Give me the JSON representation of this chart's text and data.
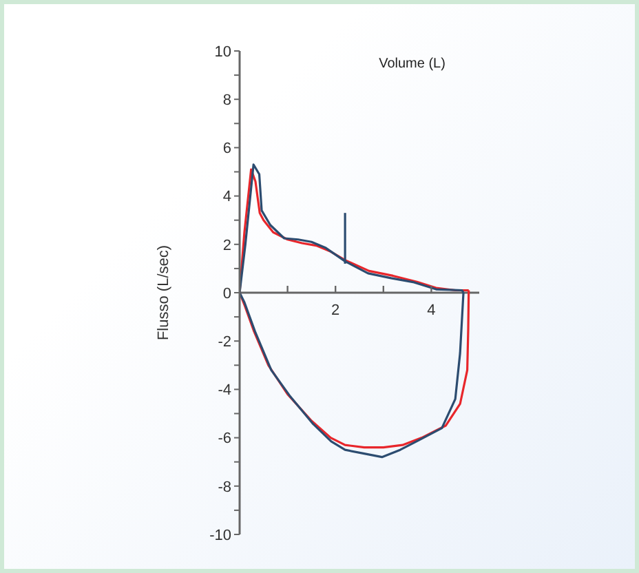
{
  "chart_data": {
    "type": "line",
    "xlabel": "Volume (L)",
    "ylabel": "Flusso (L/sec)",
    "xlim": [
      0,
      5
    ],
    "ylim": [
      -10,
      10
    ],
    "xticks": [
      {
        "value": 1,
        "label": null
      },
      2,
      {
        "value": 3,
        "label": null
      },
      4
    ],
    "yticks": [
      -10,
      {
        "value": -9,
        "label": null
      },
      -8,
      {
        "value": -7,
        "label": null
      },
      -6,
      {
        "value": -5,
        "label": null
      },
      -4,
      {
        "value": -3,
        "label": null
      },
      -2,
      {
        "value": -1,
        "label": null
      },
      0,
      {
        "value": 1,
        "label": null
      },
      2,
      {
        "value": 3,
        "label": null
      },
      4,
      {
        "value": 5,
        "label": null
      },
      6,
      {
        "value": 7,
        "label": null
      },
      8,
      {
        "value": 9,
        "label": null
      },
      10
    ],
    "grid": false,
    "marker": "none",
    "line_style": "solid",
    "series": [
      {
        "color": "#e8262b",
        "x": [
          0,
          0.1,
          0.24,
          0.33,
          0.42,
          0.5,
          0.7,
          1.0,
          1.3,
          1.6,
          1.9,
          2.2,
          2.7,
          3.2,
          3.7,
          4.1,
          4.5,
          4.78
        ],
        "values": [
          0,
          2.5,
          5.1,
          4.6,
          3.3,
          3.0,
          2.5,
          2.2,
          2.05,
          1.95,
          1.7,
          1.35,
          0.9,
          0.7,
          0.45,
          0.2,
          0.1,
          0.1
        ]
      },
      {
        "color": "#e8262b",
        "x": [
          0,
          0.1,
          0.3,
          0.6,
          1.0,
          1.5,
          1.9,
          2.2,
          2.6,
          3.0,
          3.4,
          3.8,
          4.3,
          4.6,
          4.75,
          4.77,
          4.78
        ],
        "values": [
          0,
          -0.5,
          -1.6,
          -3.0,
          -4.2,
          -5.3,
          -6.0,
          -6.3,
          -6.4,
          -6.4,
          -6.3,
          -6.0,
          -5.5,
          -4.6,
          -3.2,
          -1.5,
          0.1
        ]
      },
      {
        "color": "#2c4c70",
        "x": [
          0,
          0.12,
          0.29,
          0.41,
          0.46,
          0.64,
          0.93,
          1.22,
          1.5,
          1.8,
          2.2,
          2.68,
          3.16,
          3.64,
          4.1,
          4.64,
          4.67
        ],
        "values": [
          0,
          2.0,
          5.3,
          4.9,
          3.4,
          2.8,
          2.25,
          2.2,
          2.1,
          1.85,
          1.3,
          0.8,
          0.6,
          0.43,
          0.14,
          0.1,
          0
        ]
      },
      {
        "color": "#2c4c70",
        "x": [
          0,
          0.1,
          0.32,
          0.66,
          1.04,
          1.52,
          1.91,
          2.2,
          2.58,
          2.97,
          3.35,
          3.74,
          4.22,
          4.5,
          4.6,
          4.67
        ],
        "values": [
          0,
          -0.4,
          -1.6,
          -3.2,
          -4.25,
          -5.4,
          -6.15,
          -6.5,
          -6.65,
          -6.8,
          -6.5,
          -6.1,
          -5.6,
          -4.4,
          -2.5,
          0
        ]
      },
      {
        "color": "#2c4c70",
        "x": [
          2.2,
          2.2
        ],
        "values": [
          1.2,
          3.3
        ]
      }
    ]
  }
}
